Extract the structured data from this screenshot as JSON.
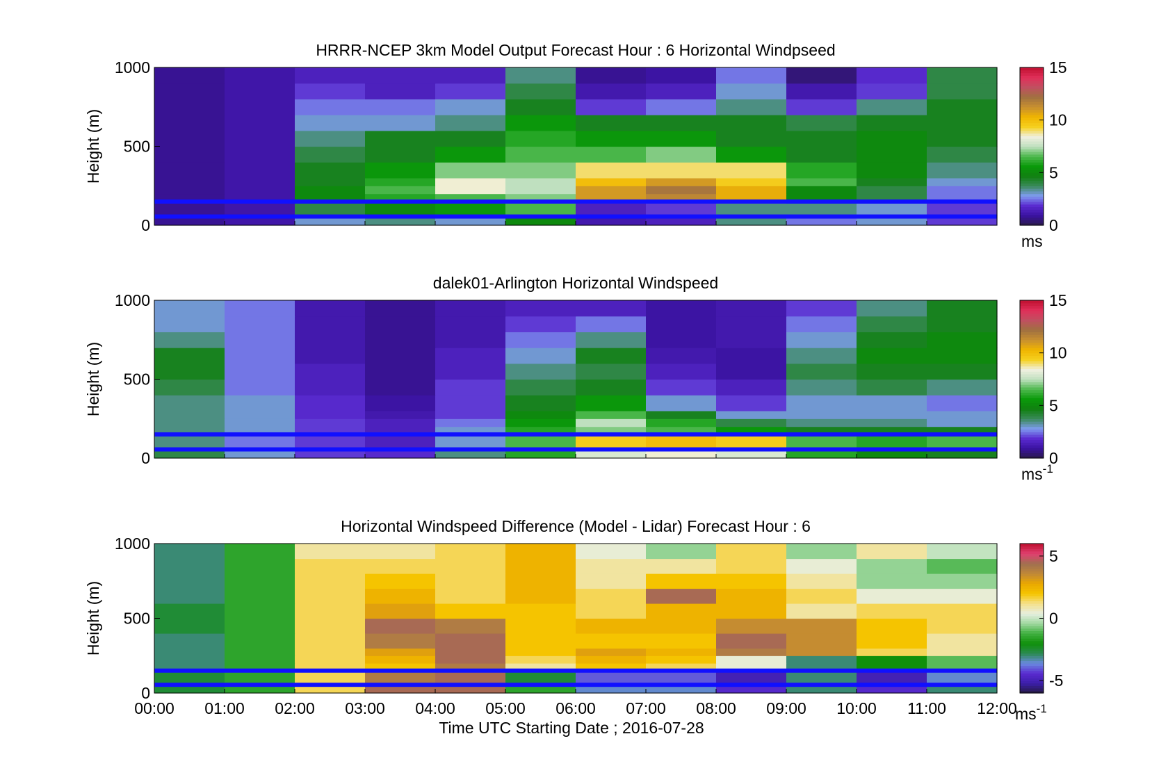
{
  "figure": {
    "xlabel": "Time UTC  Starting Date ; 2016-07-28"
  },
  "colormaps": {
    "speed": [
      "#2a1a4a",
      "#3a12a0",
      "#5a2bd0",
      "#7f9cf0",
      "#3a8a5a",
      "#108010",
      "#0a9a0a",
      "#4db84d",
      "#bfe0bf",
      "#f0f0e0",
      "#f5d020",
      "#f0b400",
      "#c89030",
      "#a07040",
      "#c05060",
      "#e0305a",
      "#c01030"
    ],
    "diff": [
      "#241a40",
      "#3c1eaa",
      "#5a2bd0",
      "#6a8ae0",
      "#2a8a50",
      "#10900a",
      "#40b040",
      "#a0d8a0",
      "#e6efe0",
      "#f5e08a",
      "#f5c400",
      "#eaa800",
      "#c08838",
      "#a07050",
      "#e04070",
      "#c01030"
    ]
  },
  "chart_data": [
    {
      "type": "heatmap",
      "title": "HRRR-NCEP 3km Model Output   Forecast Hour : 6 Horizontal Windpseed",
      "ylabel": "Height (m)",
      "ylim": [
        0,
        1000
      ],
      "yticks": [
        0,
        500,
        1000
      ],
      "xlim": [
        "00:00",
        "12:00"
      ],
      "colorbar": {
        "ticks": [
          0,
          5,
          10,
          15
        ],
        "label": "ms",
        "range": [
          0,
          15
        ]
      },
      "x_hours": [
        0,
        1,
        2,
        3,
        4,
        5,
        6,
        7,
        8,
        9,
        10,
        11,
        12
      ],
      "levels_m": [
        0,
        60,
        140,
        200,
        250,
        300,
        400,
        500,
        600,
        700,
        800,
        900,
        1000
      ],
      "values": [
        [
          0.8,
          1.1,
          3.0,
          3.5,
          3.0,
          5.0,
          1.2,
          1.5,
          3.5,
          2.5,
          3.0,
          2.0
        ],
        [
          0.8,
          1.1,
          4.0,
          5.0,
          5.5,
          6.5,
          1.5,
          2.0,
          3.5,
          3.5,
          3.0,
          2.0
        ],
        [
          0.8,
          1.1,
          5.0,
          6.0,
          6.5,
          7.0,
          11.0,
          11.5,
          10.5,
          5.0,
          4.0,
          2.5
        ],
        [
          0.8,
          1.1,
          5.0,
          6.5,
          8.5,
          7.5,
          11.0,
          12.0,
          10.5,
          5.0,
          4.0,
          2.5
        ],
        [
          0.8,
          1.1,
          4.5,
          6.0,
          8.5,
          7.5,
          10.0,
          11.0,
          9.5,
          6.5,
          4.5,
          3.0
        ],
        [
          0.8,
          1.1,
          4.5,
          5.5,
          7.0,
          7.0,
          9.0,
          9.0,
          9.0,
          6.0,
          5.0,
          3.5
        ],
        [
          0.8,
          1.1,
          4.0,
          4.5,
          5.5,
          6.5,
          6.5,
          7.0,
          5.5,
          4.5,
          5.0,
          4.0
        ],
        [
          0.8,
          1.1,
          3.5,
          4.5,
          4.5,
          6.0,
          5.5,
          5.5,
          4.5,
          4.5,
          5.0,
          4.5
        ],
        [
          0.8,
          1.1,
          3.0,
          3.0,
          3.5,
          5.5,
          4.5,
          4.5,
          4.5,
          4.0,
          4.5,
          4.5
        ],
        [
          0.8,
          1.1,
          2.5,
          2.5,
          3.0,
          4.5,
          2.0,
          2.5,
          3.5,
          2.0,
          3.5,
          4.5
        ],
        [
          0.8,
          1.1,
          2.0,
          1.5,
          2.0,
          4.0,
          1.2,
          1.5,
          3.0,
          1.2,
          2.0,
          4.0
        ],
        [
          0.8,
          1.1,
          1.5,
          1.5,
          1.5,
          3.5,
          0.8,
          1.0,
          2.5,
          0.5,
          1.8,
          4.0
        ]
      ]
    },
    {
      "type": "heatmap",
      "title": "dalek01-Arlington  Horizontal Windspeed",
      "ylabel": "Height (m)",
      "ylim": [
        0,
        1000
      ],
      "yticks": [
        0,
        500,
        1000
      ],
      "xlim": [
        "00:00",
        "12:00"
      ],
      "colorbar": {
        "ticks": [
          0,
          5,
          10,
          15
        ],
        "label": "ms",
        "label_exp": "-1",
        "range": [
          0,
          15
        ]
      },
      "x_hours": [
        0,
        1,
        2,
        3,
        4,
        5,
        6,
        7,
        8,
        9,
        10,
        11,
        12
      ],
      "levels_m": [
        0,
        60,
        140,
        200,
        250,
        300,
        400,
        500,
        600,
        700,
        800,
        900,
        1000
      ],
      "values": [
        [
          4.0,
          3.0,
          2.0,
          1.8,
          3.5,
          6.0,
          8.0,
          8.5,
          8.0,
          6.0,
          5.0,
          4.5
        ],
        [
          3.5,
          2.5,
          2.0,
          1.5,
          3.0,
          6.5,
          9.5,
          10.0,
          9.5,
          6.5,
          6.0,
          6.5
        ],
        [
          3.5,
          3.0,
          2.0,
          1.5,
          3.0,
          6.0,
          7.0,
          6.5,
          5.5,
          4.5,
          4.5,
          4.5
        ],
        [
          3.5,
          3.0,
          2.0,
          1.5,
          2.5,
          5.5,
          7.5,
          6.0,
          4.0,
          3.5,
          3.5,
          3.0
        ],
        [
          3.5,
          3.0,
          1.8,
          1.2,
          2.0,
          5.0,
          6.5,
          4.5,
          3.0,
          3.0,
          3.0,
          3.0
        ],
        [
          3.5,
          3.0,
          1.8,
          1.0,
          2.0,
          4.5,
          5.5,
          3.0,
          2.0,
          3.0,
          3.0,
          2.5
        ],
        [
          4.0,
          2.5,
          1.5,
          0.8,
          2.0,
          4.0,
          4.5,
          2.0,
          1.5,
          3.5,
          4.0,
          3.5
        ],
        [
          4.5,
          2.5,
          1.5,
          0.8,
          1.5,
          3.5,
          4.0,
          1.5,
          1.0,
          4.0,
          4.5,
          4.5
        ],
        [
          4.5,
          2.5,
          1.2,
          0.8,
          1.5,
          3.0,
          4.5,
          1.2,
          1.0,
          3.5,
          5.0,
          5.0
        ],
        [
          3.5,
          2.5,
          1.2,
          0.8,
          1.2,
          2.5,
          3.5,
          1.0,
          1.2,
          3.0,
          4.5,
          5.0
        ],
        [
          3.0,
          2.5,
          1.2,
          0.8,
          1.2,
          2.0,
          2.5,
          1.0,
          1.2,
          2.5,
          4.0,
          4.5
        ],
        [
          3.0,
          2.5,
          1.2,
          0.8,
          1.2,
          1.5,
          1.5,
          1.0,
          1.2,
          2.0,
          3.5,
          4.5
        ]
      ]
    },
    {
      "type": "heatmap",
      "title": "Horizontal Windspeed Difference (Model - Lidar) Forecast Hour : 6",
      "ylabel": "Height (m)",
      "ylim": [
        0,
        1000
      ],
      "yticks": [
        0,
        500,
        1000
      ],
      "xlabel": "Time UTC  Starting Date ; 2016-07-28",
      "xticks": [
        "00:00",
        "01:00",
        "02:00",
        "03:00",
        "04:00",
        "05:00",
        "06:00",
        "07:00",
        "08:00",
        "09:00",
        "10:00",
        "11:00",
        "12:00"
      ],
      "xlim": [
        "00:00",
        "12:00"
      ],
      "colorbar": {
        "ticks": [
          -5,
          0,
          5
        ],
        "label": "ms",
        "label_exp": "-1",
        "range": [
          -6,
          6
        ]
      },
      "x_hours": [
        0,
        1,
        2,
        3,
        4,
        5,
        6,
        7,
        8,
        9,
        10,
        11,
        12
      ],
      "levels_m": [
        0,
        60,
        140,
        200,
        250,
        300,
        400,
        500,
        600,
        700,
        800,
        900,
        1000
      ],
      "values": [
        [
          -2.5,
          -1.5,
          1.5,
          4.5,
          4.5,
          -1.5,
          -3.5,
          -3.5,
          -4.5,
          -3.0,
          -4.5,
          -3.0
        ],
        [
          -2.5,
          -1.5,
          1.5,
          4.0,
          4.5,
          -2.5,
          -4.0,
          -4.0,
          -5.0,
          -3.0,
          -5.0,
          -3.5
        ],
        [
          -3.0,
          -1.5,
          1.5,
          2.0,
          4.0,
          1.0,
          2.0,
          1.5,
          0.5,
          -3.0,
          -2.0,
          -1.0
        ],
        [
          -3.0,
          -1.5,
          1.5,
          2.5,
          4.5,
          1.5,
          2.5,
          2.0,
          0.5,
          -3.0,
          -2.0,
          -1.0
        ],
        [
          -3.0,
          -1.5,
          1.5,
          3.0,
          4.5,
          2.0,
          3.0,
          2.5,
          4.0,
          3.5,
          1.5,
          1.0
        ],
        [
          -3.0,
          -1.5,
          1.5,
          4.0,
          4.5,
          2.0,
          2.0,
          2.0,
          4.5,
          3.5,
          2.0,
          1.0
        ],
        [
          -2.5,
          -1.5,
          1.5,
          4.5,
          4.0,
          2.0,
          2.5,
          2.5,
          3.5,
          3.5,
          2.0,
          1.5
        ],
        [
          -2.5,
          -1.5,
          1.5,
          3.0,
          2.0,
          2.0,
          1.5,
          2.5,
          2.5,
          1.0,
          1.5,
          1.5
        ],
        [
          -3.0,
          -1.5,
          1.5,
          2.5,
          1.5,
          2.5,
          1.5,
          4.5,
          2.5,
          1.5,
          0.5,
          0.5
        ],
        [
          -3.0,
          -1.5,
          1.5,
          2.0,
          1.5,
          2.5,
          1.0,
          2.0,
          2.0,
          1.0,
          -0.5,
          -0.5
        ],
        [
          -3.0,
          -1.5,
          1.5,
          1.5,
          1.5,
          2.5,
          1.0,
          1.0,
          1.5,
          0.5,
          -0.5,
          -1.0
        ],
        [
          -3.0,
          -1.5,
          1.0,
          1.0,
          1.5,
          2.5,
          0.5,
          -0.5,
          1.5,
          -0.5,
          1.0,
          0.0
        ]
      ]
    }
  ],
  "overlays": {
    "blue_lines_height_m": [
      150,
      55
    ],
    "blue_color": "#1010ff",
    "missing_color": "#808080"
  }
}
